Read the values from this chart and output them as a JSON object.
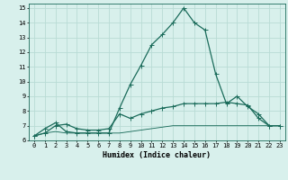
{
  "x": [
    0,
    1,
    2,
    3,
    4,
    5,
    6,
    7,
    8,
    9,
    10,
    11,
    12,
    13,
    14,
    15,
    16,
    17,
    18,
    19,
    20,
    21,
    22,
    23
  ],
  "line1": [
    6.3,
    6.8,
    7.2,
    6.6,
    6.5,
    6.5,
    6.5,
    6.5,
    8.2,
    9.8,
    11.1,
    12.5,
    13.2,
    14.0,
    15.0,
    14.0,
    13.5,
    10.5,
    8.5,
    9.0,
    8.3,
    7.8,
    7.0,
    7.0
  ],
  "line2": [
    6.3,
    6.5,
    7.0,
    7.1,
    6.8,
    6.7,
    6.7,
    6.8,
    7.8,
    7.5,
    7.8,
    8.0,
    8.2,
    8.3,
    8.5,
    8.5,
    8.5,
    8.5,
    8.6,
    8.5,
    8.4,
    7.5,
    7.0,
    7.0
  ],
  "line3": [
    6.3,
    6.5,
    6.6,
    6.5,
    6.5,
    6.5,
    6.5,
    6.5,
    6.5,
    6.6,
    6.7,
    6.8,
    6.9,
    7.0,
    7.0,
    7.0,
    7.0,
    7.0,
    7.0,
    7.0,
    7.0,
    7.0,
    7.0,
    7.0
  ],
  "color": "#1a6b5a",
  "bg_color": "#d8f0ec",
  "grid_color": "#b8dbd5",
  "xlabel": "Humidex (Indice chaleur)",
  "ylim": [
    6,
    15.3
  ],
  "xlim": [
    -0.5,
    23.5
  ],
  "yticks": [
    6,
    7,
    8,
    9,
    10,
    11,
    12,
    13,
    14,
    15
  ],
  "xticks": [
    0,
    1,
    2,
    3,
    4,
    5,
    6,
    7,
    8,
    9,
    10,
    11,
    12,
    13,
    14,
    15,
    16,
    17,
    18,
    19,
    20,
    21,
    22,
    23
  ],
  "tick_fontsize": 5.0,
  "xlabel_fontsize": 6.0,
  "linewidth": 0.9,
  "markersize": 2.0
}
